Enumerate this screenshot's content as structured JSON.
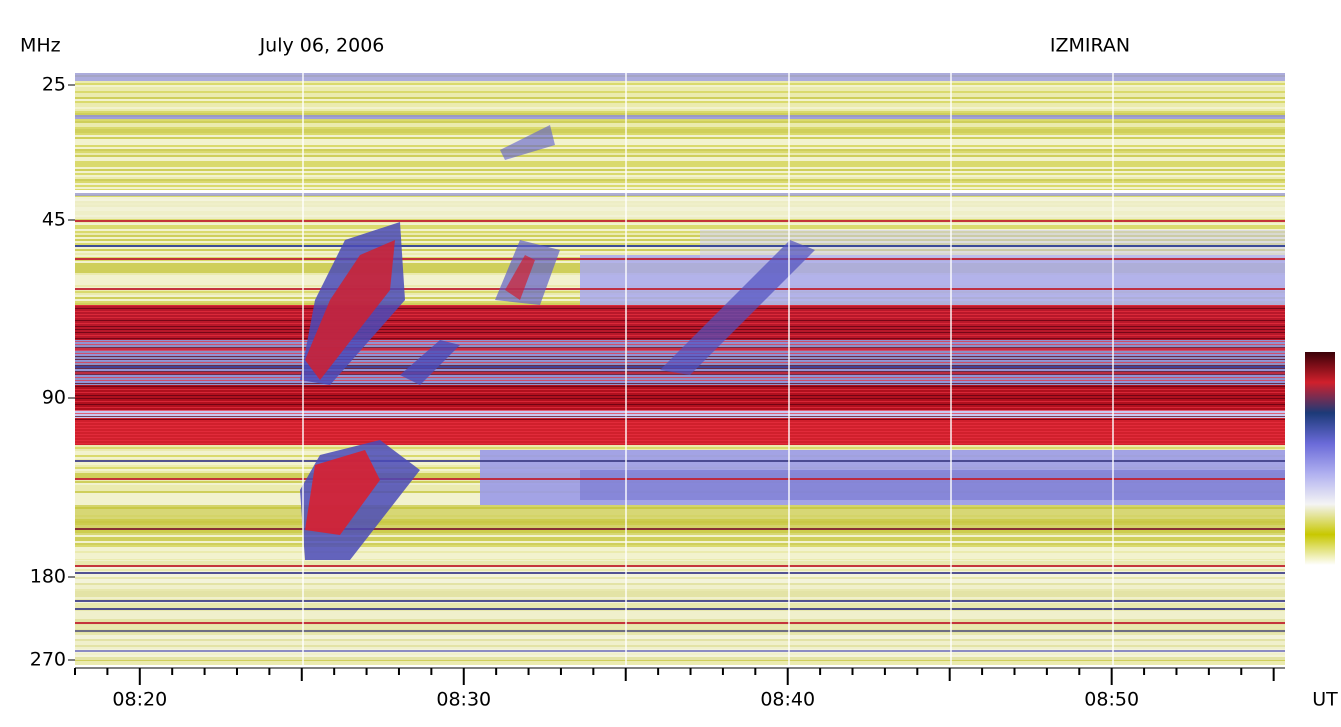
{
  "chart_data": {
    "type": "spectrogram",
    "title": "July 06, 2006",
    "source": "IZMIRAN",
    "y_label": "MHz",
    "x_label": "UT",
    "ylim": [
      24,
      275
    ],
    "yticks": [
      25,
      45,
      90,
      180,
      270
    ],
    "xlim": [
      18,
      55.35
    ],
    "xticks": [
      {
        "value": 20,
        "label": "08:20"
      },
      {
        "value": 30,
        "label": "08:30"
      },
      {
        "value": 40,
        "label": "08:40"
      },
      {
        "value": 50,
        "label": "08:50"
      }
    ],
    "xminorticks": [
      18,
      19,
      21,
      22,
      23,
      24,
      25,
      26,
      27,
      28,
      29,
      31,
      32,
      33,
      34,
      35,
      36,
      37,
      38,
      39,
      41,
      42,
      43,
      44,
      45,
      46,
      47,
      48,
      49,
      51,
      52,
      53,
      54,
      55
    ],
    "colormap": [
      "#3a0008",
      "#d0202c",
      "#1c3a78",
      "#6a6ad8",
      "#b0b0f0",
      "#f4f4f4",
      "#c8c800",
      "#ffffff"
    ]
  }
}
